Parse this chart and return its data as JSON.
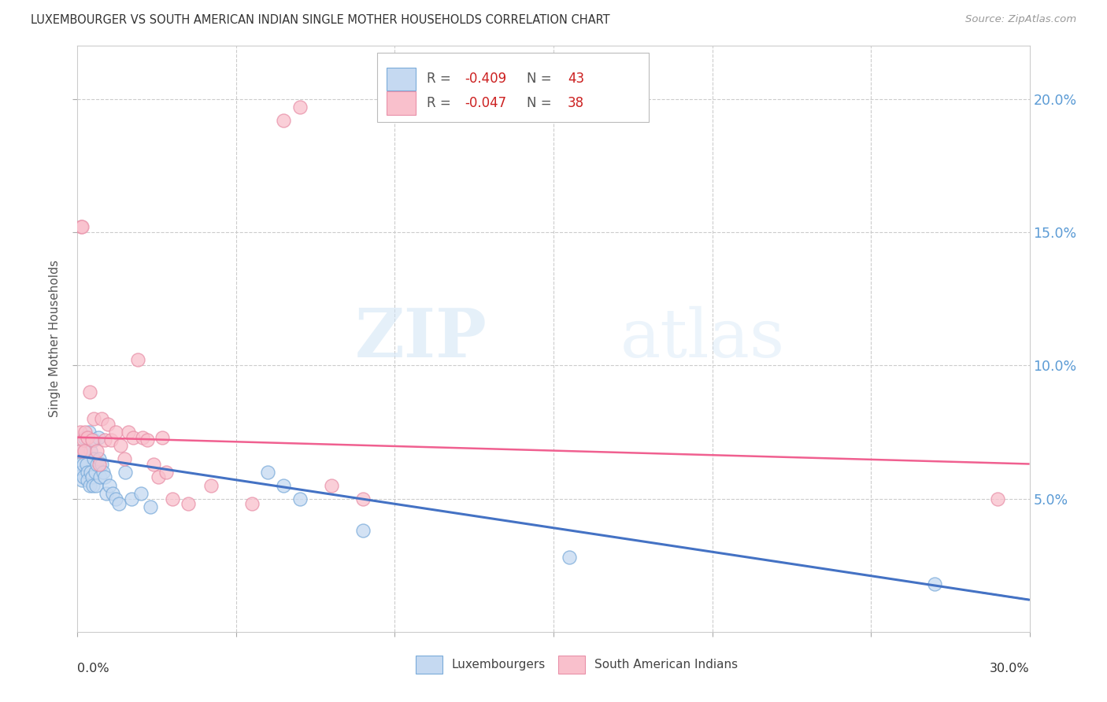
{
  "title": "LUXEMBOURGER VS SOUTH AMERICAN INDIAN SINGLE MOTHER HOUSEHOLDS CORRELATION CHART",
  "source": "Source: ZipAtlas.com",
  "ylabel": "Single Mother Households",
  "xmin": 0.0,
  "xmax": 0.3,
  "ymin": 0.0,
  "ymax": 0.22,
  "yticks": [
    0.05,
    0.1,
    0.15,
    0.2
  ],
  "ytick_labels": [
    "5.0%",
    "10.0%",
    "15.0%",
    "20.0%"
  ],
  "xtick_positions": [
    0.0,
    0.05,
    0.1,
    0.15,
    0.2,
    0.25,
    0.3
  ],
  "blue_R": -0.409,
  "blue_N": 43,
  "pink_R": -0.047,
  "pink_N": 38,
  "legend_label_blue": "Luxembourgers",
  "legend_label_pink": "South American Indians",
  "blue_fill": "#c5d9f1",
  "pink_fill": "#f9c0cc",
  "blue_edge": "#7aabda",
  "pink_edge": "#e890a8",
  "blue_line": "#4472c4",
  "pink_line": "#f06090",
  "right_axis_color": "#5b9bd5",
  "watermark_zip": "ZIP",
  "watermark_atlas": "atlas",
  "blue_line_x0": 0.0,
  "blue_line_y0": 0.066,
  "blue_line_x1": 0.3,
  "blue_line_y1": 0.012,
  "pink_line_x0": 0.0,
  "pink_line_y0": 0.073,
  "pink_line_x1": 0.3,
  "pink_line_y1": 0.063,
  "blue_scatter_x": [
    0.0008,
    0.001,
    0.0012,
    0.0015,
    0.0018,
    0.002,
    0.0022,
    0.0025,
    0.0028,
    0.003,
    0.0032,
    0.0035,
    0.0038,
    0.004,
    0.0042,
    0.0045,
    0.0048,
    0.005,
    0.0052,
    0.0055,
    0.0058,
    0.006,
    0.0065,
    0.0068,
    0.007,
    0.0075,
    0.008,
    0.0085,
    0.009,
    0.01,
    0.011,
    0.012,
    0.013,
    0.015,
    0.017,
    0.02,
    0.023,
    0.06,
    0.065,
    0.07,
    0.09,
    0.155,
    0.27
  ],
  "blue_scatter_y": [
    0.068,
    0.063,
    0.06,
    0.057,
    0.063,
    0.058,
    0.073,
    0.068,
    0.063,
    0.06,
    0.057,
    0.075,
    0.055,
    0.068,
    0.06,
    0.058,
    0.055,
    0.072,
    0.065,
    0.06,
    0.055,
    0.063,
    0.073,
    0.065,
    0.058,
    0.063,
    0.06,
    0.058,
    0.052,
    0.055,
    0.052,
    0.05,
    0.048,
    0.06,
    0.05,
    0.052,
    0.047,
    0.06,
    0.055,
    0.05,
    0.038,
    0.028,
    0.018
  ],
  "pink_scatter_x": [
    0.0008,
    0.001,
    0.0012,
    0.0015,
    0.0018,
    0.0022,
    0.0025,
    0.003,
    0.0038,
    0.0045,
    0.0052,
    0.006,
    0.0068,
    0.0075,
    0.0085,
    0.0095,
    0.0105,
    0.012,
    0.0135,
    0.0148,
    0.016,
    0.0175,
    0.019,
    0.0205,
    0.022,
    0.024,
    0.0255,
    0.0268,
    0.028,
    0.03,
    0.035,
    0.042,
    0.055,
    0.065,
    0.07,
    0.08,
    0.09,
    0.29
  ],
  "pink_scatter_y": [
    0.075,
    0.068,
    0.152,
    0.152,
    0.072,
    0.068,
    0.075,
    0.073,
    0.09,
    0.072,
    0.08,
    0.068,
    0.063,
    0.08,
    0.072,
    0.078,
    0.072,
    0.075,
    0.07,
    0.065,
    0.075,
    0.073,
    0.102,
    0.073,
    0.072,
    0.063,
    0.058,
    0.073,
    0.06,
    0.05,
    0.048,
    0.055,
    0.048,
    0.192,
    0.197,
    0.055,
    0.05,
    0.05
  ]
}
